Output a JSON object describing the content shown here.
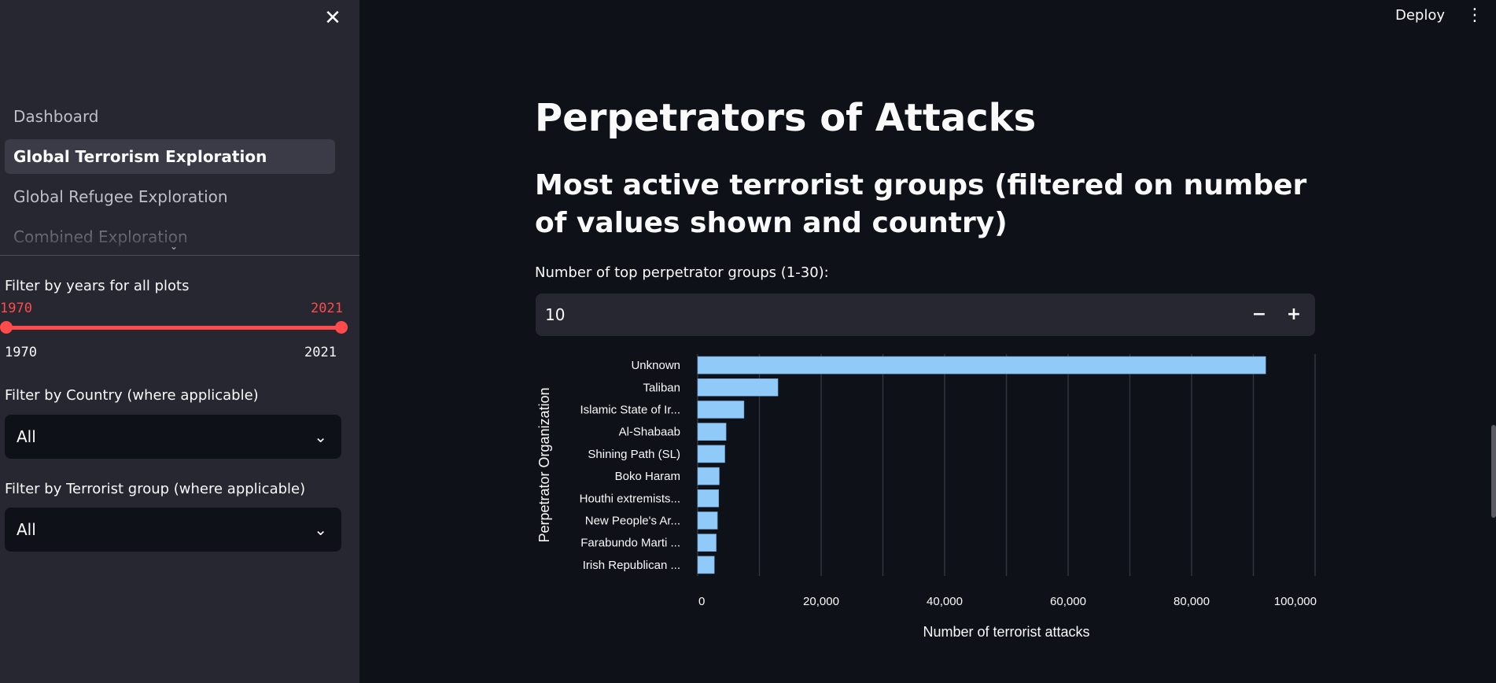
{
  "sidebar": {
    "nav": [
      {
        "label": "Dashboard",
        "active": false
      },
      {
        "label": "Global Terrorism Exploration",
        "active": true
      },
      {
        "label": "Global Refugee Exploration",
        "active": false
      },
      {
        "label": "Combined Exploration",
        "active": false
      }
    ],
    "years_filter": {
      "label": "Filter by years for all plots",
      "selected_min": "1970",
      "selected_max": "2021",
      "range_min": "1970",
      "range_max": "2021"
    },
    "country_filter": {
      "label": "Filter by Country (where applicable)",
      "value": "All"
    },
    "group_filter": {
      "label": "Filter by Terrorist group (where applicable)",
      "value": "All"
    },
    "icons": {
      "close": "close-icon",
      "expand": "chevron-down-icon",
      "dropdown": "chevron-down-icon"
    }
  },
  "header": {
    "deploy_label": "Deploy",
    "menu_icon": "vertical-ellipsis-icon"
  },
  "main": {
    "title": "Perpetrators of Attacks",
    "section_heading": "Most active terrorist groups (filtered on number of values shown and country)",
    "number_input": {
      "label": "Number of top perpetrator groups (1-30):",
      "value": "10",
      "minus": "−",
      "plus": "+"
    }
  },
  "colors": {
    "accent": "#ff4b4b",
    "bar": "#90caf9",
    "background": "#0e1117",
    "sidebar": "#262730"
  },
  "chart_data": {
    "type": "bar",
    "orientation": "horizontal",
    "categories": [
      "Unknown",
      "Taliban",
      "Islamic State of Ir...",
      "Al-Shabaab",
      "Shining Path (SL)",
      "Boko Haram",
      "Houthi extremists...",
      "New People's Ar...",
      "Farabundo Marti ...",
      "Irish Republican ..."
    ],
    "values": [
      92000,
      13000,
      7500,
      4600,
      4400,
      3500,
      3400,
      3200,
      3000,
      2700
    ],
    "xlabel": "Number of terrorist attacks",
    "ylabel": "Perpetrator Organization",
    "xlim": [
      0,
      100000
    ],
    "xticks": [
      0,
      20000,
      40000,
      60000,
      80000,
      100000
    ],
    "xtick_labels": [
      "0",
      "20,000",
      "40,000",
      "60,000",
      "80,000",
      "100,000"
    ],
    "grid": true
  }
}
